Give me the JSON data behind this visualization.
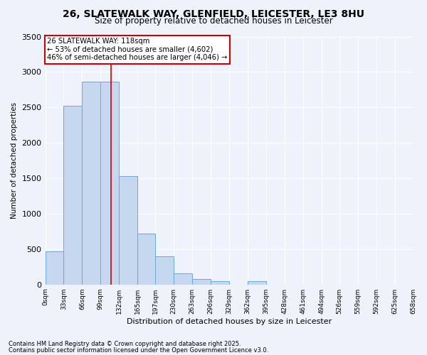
{
  "title_line1": "26, SLATEWALK WAY, GLENFIELD, LEICESTER, LE3 8HU",
  "title_line2": "Size of property relative to detached houses in Leicester",
  "xlabel": "Distribution of detached houses by size in Leicester",
  "ylabel": "Number of detached properties",
  "bar_color": "#c5d8f0",
  "bar_edge_color": "#6aaad4",
  "background_color": "#eef2fb",
  "grid_color": "#ffffff",
  "bin_edges": [
    0,
    33,
    66,
    99,
    132,
    165,
    197,
    230,
    263,
    296,
    329,
    362,
    395,
    428,
    461,
    494,
    526,
    559,
    592,
    625,
    658
  ],
  "bar_heights": [
    470,
    2520,
    2860,
    2860,
    1530,
    720,
    400,
    155,
    80,
    45,
    0,
    45,
    0,
    0,
    0,
    0,
    0,
    0,
    0,
    0
  ],
  "tick_labels": [
    "0sqm",
    "33sqm",
    "66sqm",
    "99sqm",
    "132sqm",
    "165sqm",
    "197sqm",
    "230sqm",
    "263sqm",
    "296sqm",
    "329sqm",
    "362sqm",
    "395sqm",
    "428sqm",
    "461sqm",
    "494sqm",
    "526sqm",
    "559sqm",
    "592sqm",
    "625sqm",
    "658sqm"
  ],
  "vline_x": 118,
  "vline_color": "#cc0000",
  "annotation_title": "26 SLATEWALK WAY: 118sqm",
  "annotation_line2": "← 53% of detached houses are smaller (4,602)",
  "annotation_line3": "46% of semi-detached houses are larger (4,046) →",
  "annotation_box_color": "#ffffff",
  "annotation_box_edge": "#cc0000",
  "footer_line1": "Contains HM Land Registry data © Crown copyright and database right 2025.",
  "footer_line2": "Contains public sector information licensed under the Open Government Licence v3.0.",
  "ylim": [
    0,
    3500
  ],
  "yticks": [
    0,
    500,
    1000,
    1500,
    2000,
    2500,
    3000,
    3500
  ]
}
